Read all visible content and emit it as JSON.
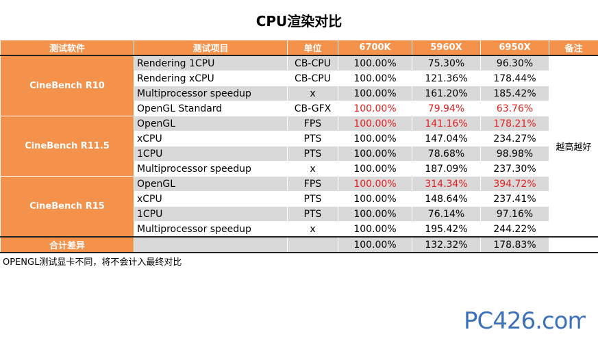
{
  "title": "CPU渲染对比",
  "headers": [
    "测试软件",
    "测试项目",
    "单位",
    "6700K",
    "5960X",
    "6950X",
    "备注"
  ],
  "note": "越高越好",
  "groups": [
    {
      "software": "CineBench R10",
      "rows": [
        {
          "item": "Rendering 1CPU",
          "unit": "CB-CPU",
          "v6700k": "100.00%",
          "v5960x": "75.30%",
          "v6950x": "96.30%",
          "highlight": false
        },
        {
          "item": "Rendering xCPU",
          "unit": "CB-CPU",
          "v6700k": "100.00%",
          "v5960x": "121.36%",
          "v6950x": "178.44%",
          "highlight": false
        },
        {
          "item": "Multiprocessor speedup",
          "unit": "x",
          "v6700k": "100.00%",
          "v5960x": "161.20%",
          "v6950x": "185.42%",
          "highlight": false
        },
        {
          "item": "OpenGL Standard",
          "unit": "CB-GFX",
          "v6700k": "100.00%",
          "v5960x": "79.94%",
          "v6950x": "63.76%",
          "highlight": true
        }
      ]
    },
    {
      "software": "CineBench R11.5",
      "rows": [
        {
          "item": "OpenGL",
          "unit": "FPS",
          "v6700k": "100.00%",
          "v5960x": "141.16%",
          "v6950x": "178.21%",
          "highlight": true
        },
        {
          "item": "xCPU",
          "unit": "PTS",
          "v6700k": "100.00%",
          "v5960x": "147.04%",
          "v6950x": "234.27%",
          "highlight": false
        },
        {
          "item": "1CPU",
          "unit": "PTS",
          "v6700k": "100.00%",
          "v5960x": "78.68%",
          "v6950x": "98.98%",
          "highlight": false
        },
        {
          "item": "Multiprocessor speedup",
          "unit": "x",
          "v6700k": "100.00%",
          "v5960x": "187.09%",
          "v6950x": "237.30%",
          "highlight": false
        }
      ]
    },
    {
      "software": "CineBench R15",
      "rows": [
        {
          "item": "OpenGL",
          "unit": "FPS",
          "v6700k": "100.00%",
          "v5960x": "314.34%",
          "v6950x": "394.72%",
          "highlight": true
        },
        {
          "item": "xCPU",
          "unit": "PTS",
          "v6700k": "100.00%",
          "v5960x": "148.64%",
          "v6950x": "237.41%",
          "highlight": false
        },
        {
          "item": "1CPU",
          "unit": "PTS",
          "v6700k": "100.00%",
          "v5960x": "76.14%",
          "v6950x": "97.16%",
          "highlight": false
        },
        {
          "item": "Multiprocessor speedup",
          "unit": "x",
          "v6700k": "100.00%",
          "v5960x": "195.42%",
          "v6950x": "244.22%",
          "highlight": false
        }
      ]
    }
  ],
  "total": {
    "label": "合计差异",
    "v6700k": "100.00%",
    "v5960x": "132.32%",
    "v6950x": "178.83%"
  },
  "footnote": "OPENGL测试显卡不同，将不会计入最终对比",
  "logo": {
    "text": "PC426.com",
    "color": "#3d72b8"
  }
}
